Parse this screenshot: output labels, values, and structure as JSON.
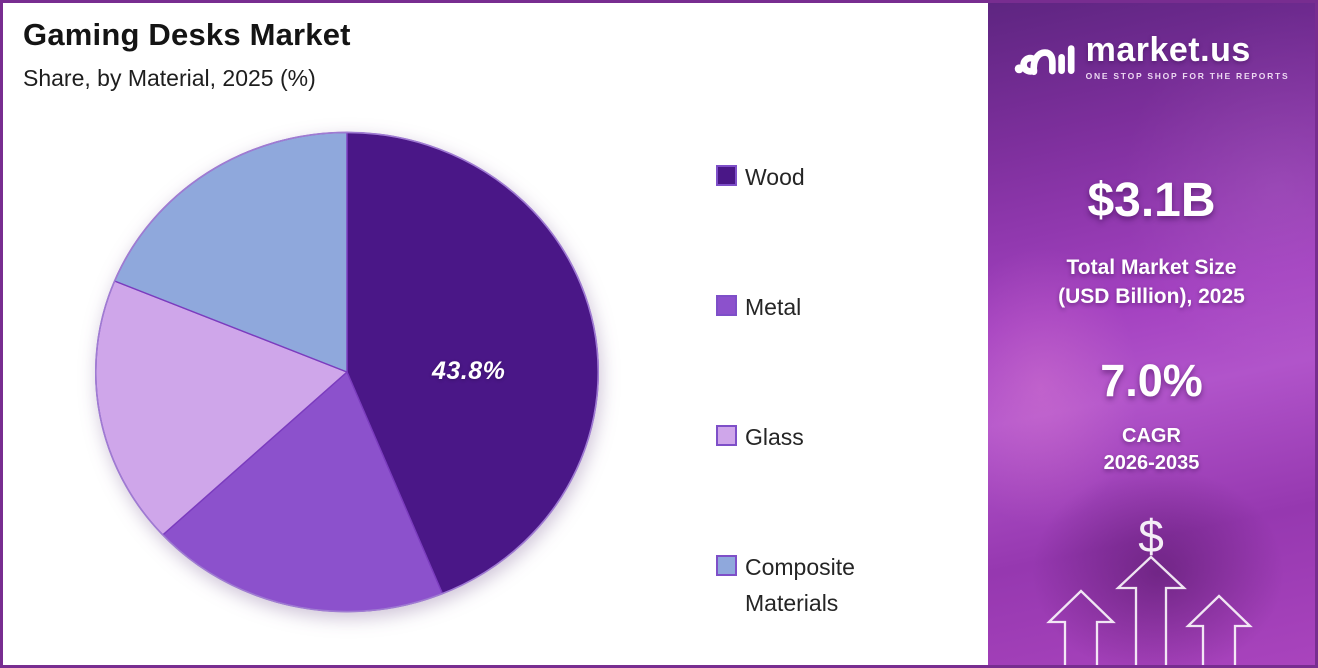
{
  "header": {
    "title": "Gaming Desks Market",
    "subtitle": "Share, by Material, 2025 (%)"
  },
  "chart_data": {
    "type": "pie",
    "title": "Gaming Desks Market",
    "subtitle": "Share, by Material, 2025 (%)",
    "categories": [
      "Wood",
      "Metal",
      "Glass",
      "Composite Materials"
    ],
    "values": [
      43.8,
      19.3,
      18.1,
      18.8
    ],
    "unit": "%",
    "colors": [
      "#4A1787",
      "#8C51CC",
      "#CFA6EA",
      "#8FA8DC"
    ],
    "slice_border_color": "#7B3CBE",
    "outer_rim_color": "#9F7BD2",
    "start_angle_deg": 0,
    "direction": "clockwise",
    "legend_position": "right",
    "data_label": {
      "slice": "Wood",
      "text": "43.8%"
    }
  },
  "legend": {
    "items": [
      {
        "label": "Wood",
        "color": "#4A1787"
      },
      {
        "label": "Metal",
        "color": "#8C51CC"
      },
      {
        "label": "Glass",
        "color": "#CFA6EA"
      },
      {
        "label": "Composite Materials",
        "color": "#8FA8DC"
      }
    ]
  },
  "sidebar": {
    "brand": {
      "name": "market.us",
      "tagline": "ONE STOP SHOP FOR THE REPORTS"
    },
    "market_size": {
      "value": "$3.1B",
      "label_line1": "Total Market Size",
      "label_line2": "(USD Billion), 2025"
    },
    "cagr": {
      "value": "7.0%",
      "label_line1": "CAGR",
      "label_line2": "2026-2035"
    },
    "dollar_symbol": "$"
  },
  "page": {
    "border_color": "#782D90",
    "background": "#ffffff"
  }
}
